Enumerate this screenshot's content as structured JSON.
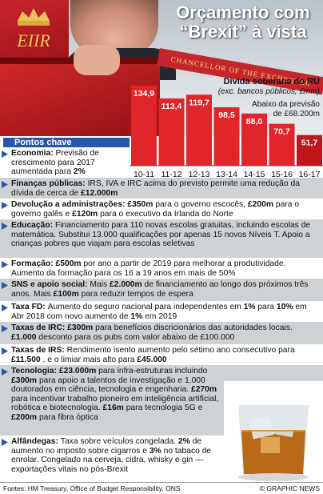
{
  "header": {
    "title_line1": "Orçamento com",
    "title_line2": "“Brexit” à vista",
    "banner": "CHANCELLOR OF THE EXCHEQUER",
    "crest_text": "EIIR"
  },
  "chart_data": {
    "type": "bar",
    "title": "Dívida soberana do RU",
    "subtitle": "(exc. bancos públicos, £mm)",
    "annotation": "Abaixo da previsão de £68.200m",
    "categories": [
      "10-11",
      "11-12",
      "12-13",
      "13-14",
      "14-15",
      "15-16",
      "16-17"
    ],
    "values": [
      134.9,
      113.4,
      119.7,
      98.5,
      88.0,
      70.7,
      51.7
    ],
    "value_labels": [
      "134,9",
      "113,4",
      "119,7",
      "98,5",
      "88,0",
      "70,7",
      "51,7"
    ],
    "colors": {
      "bar": "#e0262b",
      "highlight": "#c1171c",
      "label_text": "#ffffff"
    }
  },
  "pontos_chave": "Pontos chave",
  "items": [
    {
      "title": "Economia:",
      "body": "Previsão de crescimento para 2017 aumentada para",
      "bold_tail": "2%"
    },
    {
      "title": "Finanças públicas:",
      "body": "IRS, IVA e IRC acima do previsto permite uma redução da dívida de cerca de",
      "bold_tail": "£12.000m"
    },
    {
      "title": "Devolução a administrações:",
      "parts": [
        "£350m",
        "para o governo escocês,",
        "£200m",
        "para o governo galês e",
        "£120m",
        "para o executivo da Irlanda do Norte"
      ]
    },
    {
      "title": "Educação:",
      "body": "Financiamento para 110 novas escolas gratuitas, incluindo escolas de matemática. Substitui 13.000 qualificações por apenas 15 novos Níveis T. Apoio a crianças pobres que viajam para escolas seletivas"
    },
    {
      "title": "Formação:",
      "parts": [
        "£500m",
        "por ano a partir de 2019 para melhorar a produtividade. Aumento da formação para os 16 a 19 anos em mais de 50%"
      ]
    },
    {
      "title": "SNS e apoio social:",
      "parts": [
        "Mais",
        "£2.000m",
        "de financiamento ao longo dos próximos três anos. Mais",
        "£100m",
        "para reduzir tempos de espera"
      ]
    },
    {
      "title": "Taxa FD:",
      "parts": [
        "Aumento do seguro nacional para independentes em",
        "1%",
        "para",
        "10%",
        "em Abr 2018 com novo aumento de",
        "1%",
        "em 2019"
      ]
    },
    {
      "title": "Taxas de IRC:",
      "parts": [
        "£300m",
        "para benefícios discricionários das autoridades locais.",
        "£1.000",
        "desconto para os pubs com valor abaixo de £100.000"
      ]
    },
    {
      "title": "Taxas de IRS:",
      "parts": [
        "Rendimento isento aumento pelo sétimo ano consecutivo para",
        "£11.500",
        ", e o limiar mais alto para",
        "£45.000"
      ]
    },
    {
      "title": "Tecnologia:",
      "parts": [
        "£23.000m",
        "para infra-estruturas incluindo",
        "£300m",
        "para apoio a talentos de investigação e 1.000 doutorados em ciência, tecnologia e engenharia.",
        "£270m",
        "para incentivar trabalho pioneiro em inteligência artificial, robótica e biotecnologia.",
        "£16m",
        "para tecnologia 5G e",
        "£200m",
        "para fibra óptica"
      ]
    },
    {
      "title": "Alfândegas:",
      "parts": [
        "Taxa sobre veículos congelada.",
        "2%",
        "de aumento no imposto sobre cigarros e",
        "3%",
        "no tabaco de enrolar. Congelado na cerveja, cidra, whisky e gin — exportações vitais no pós-Brexit"
      ]
    }
  ],
  "footer": {
    "sources": "Fontes: HM Treasury, Office of Budget Responsibility, ONS",
    "credit": "© GRAPHIC NEWS"
  }
}
